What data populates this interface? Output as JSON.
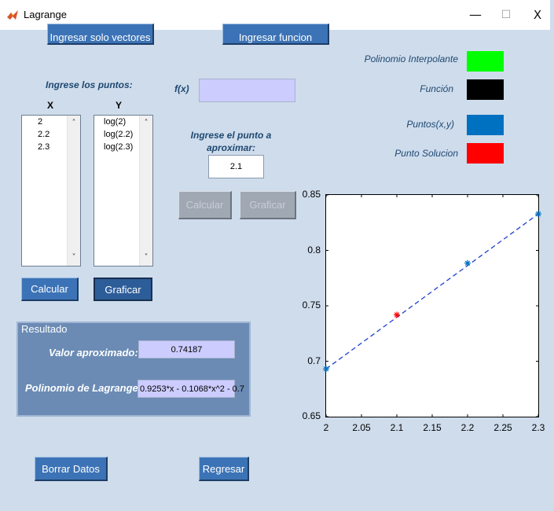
{
  "window": {
    "title": "Lagrange",
    "icon": "matlab-icon",
    "minimize": "—",
    "maximize": "☐",
    "close": "X"
  },
  "top_buttons": {
    "vectors": "Ingresar solo vectores",
    "function": "Ingresar funcion"
  },
  "points": {
    "heading": "Ingrese los puntos:",
    "x_header": "X",
    "y_header": "Y",
    "x_values": [
      "2",
      "2.2",
      "2.3"
    ],
    "y_values": [
      "log(2)",
      "log(2.2)",
      "log(2.3)"
    ]
  },
  "function_input": {
    "label": "f(x)",
    "value": ""
  },
  "approx_point": {
    "label_line1": "Ingrese el punto a",
    "label_line2": "aproximar:",
    "value": "2.1"
  },
  "middle_buttons": {
    "calcular": "Calcular",
    "graficar": "Graficar"
  },
  "left_buttons": {
    "calcular": "Calcular",
    "graficar": "Graficar"
  },
  "legend": [
    {
      "label": "Polinomio Interpolante",
      "color": "#00ff00"
    },
    {
      "label": "Función",
      "color": "#000000"
    },
    {
      "label": "Puntos(x,y)",
      "color": "#0070c0"
    },
    {
      "label": "Punto Solucion",
      "color": "#ff0000"
    }
  ],
  "result": {
    "title": "Resultado",
    "approx_label": "Valor aproximado:",
    "approx_value": "0.74187",
    "poly_label": "Polinomio de Lagrange:",
    "poly_value": "0.9253*x - 0.1068*x^2 - 0.7"
  },
  "bottom_buttons": {
    "borrar": "Borrar Datos",
    "regresar": "Regresar"
  },
  "chart_data": {
    "type": "scatter",
    "xlim": [
      2,
      2.3
    ],
    "ylim": [
      0.65,
      0.85
    ],
    "x_ticks": [
      "2",
      "2.05",
      "2.1",
      "2.15",
      "2.2",
      "2.25",
      "2.3"
    ],
    "y_ticks": [
      "0.85",
      "0.8",
      "0.75",
      "0.7",
      "0.65"
    ],
    "grid": false,
    "series": [
      {
        "style": "dashed-line",
        "color": "#1f3fd0",
        "x": [
          2.0,
          2.3
        ],
        "y": [
          0.6931,
          0.8329
        ]
      },
      {
        "style": "star-markers",
        "color": "#0070c0",
        "x": [
          2.0,
          2.2,
          2.3
        ],
        "y": [
          0.6931,
          0.7885,
          0.8329
        ]
      },
      {
        "style": "star-marker",
        "color": "#ff0000",
        "x": [
          2.1
        ],
        "y": [
          0.74187
        ]
      }
    ]
  }
}
